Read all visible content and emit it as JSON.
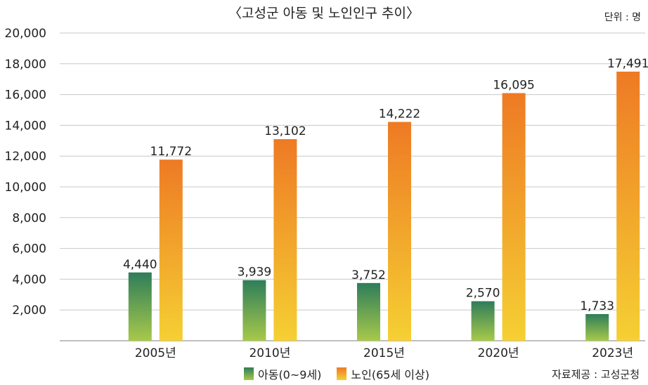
{
  "title": "〈고성군 아동 및 노인인구 추이〉",
  "unit_label": "단위 : 명",
  "source_label": "자료제공 : 고성군청",
  "colors": {
    "child_top": "#2e7d5a",
    "child_bottom": "#a7c94a",
    "elder_top": "#ee7a24",
    "elder_bottom": "#f5d033",
    "grid": "#c8c8c8",
    "axis": "#999999"
  },
  "legend": [
    "아동(0~9세)",
    "노인(65세 이상)"
  ],
  "chart_data": {
    "type": "bar",
    "categories": [
      "2005년",
      "2010년",
      "2015년",
      "2020년",
      "2023년"
    ],
    "series": [
      {
        "name": "아동(0~9세)",
        "values": [
          4440,
          3939,
          3752,
          2570,
          1733
        ],
        "labels": [
          "4,440",
          "3,939",
          "3,752",
          "2,570",
          "1,733"
        ]
      },
      {
        "name": "노인(65세 이상)",
        "values": [
          11772,
          13102,
          14222,
          16095,
          17491
        ],
        "labels": [
          "11,772",
          "13,102",
          "14,222",
          "16,095",
          "17,491"
        ]
      }
    ],
    "ylim": [
      0,
      20000
    ],
    "yticks": [
      2000,
      4000,
      6000,
      8000,
      10000,
      12000,
      14000,
      16000,
      18000,
      20000
    ],
    "ytick_labels": [
      "2,000",
      "4,000",
      "6,000",
      "8,000",
      "10,000",
      "12,000",
      "14,000",
      "16,000",
      "18,000",
      "20,000"
    ],
    "grid": true,
    "legend_position": "bottom"
  }
}
